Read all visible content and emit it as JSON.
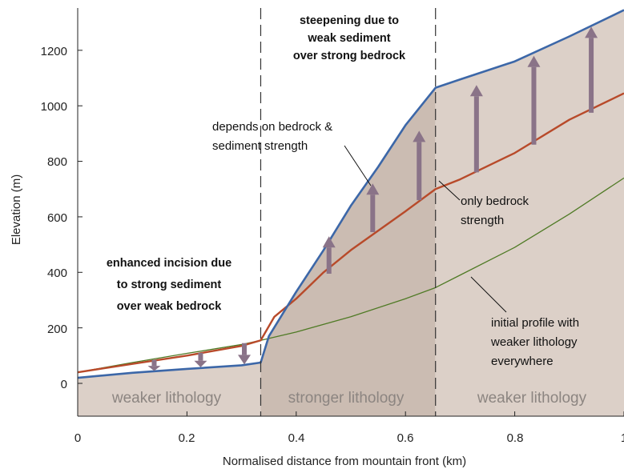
{
  "chart_data": {
    "type": "line",
    "xlabel": "Normalised distance from mountain front (km)",
    "ylabel": "Elevation (m)",
    "xlim": [
      0,
      1
    ],
    "ylim": [
      -120,
      1350
    ],
    "x_ticks": [
      "0",
      "0.2",
      "0.4",
      "0.6",
      "0.8",
      "1"
    ],
    "y_ticks": [
      "0",
      "200",
      "400",
      "600",
      "800",
      "1000",
      "1200"
    ],
    "boundaries": [
      0.335,
      0.655
    ],
    "region_labels": [
      "weaker lithology",
      "stronger lithology",
      "weaker lithology"
    ],
    "series": [
      {
        "key": "initial",
        "color": "#4f7a25",
        "x": [
          0,
          0.1,
          0.2,
          0.3,
          0.335,
          0.4,
          0.5,
          0.6,
          0.655,
          0.7,
          0.8,
          0.9,
          1.0
        ],
        "values": [
          40,
          75,
          108,
          140,
          155,
          185,
          240,
          305,
          345,
          390,
          490,
          610,
          740
        ]
      },
      {
        "key": "bedrock_only",
        "color": "#b84a2a",
        "x": [
          0,
          0.1,
          0.2,
          0.3,
          0.335,
          0.36,
          0.4,
          0.45,
          0.5,
          0.55,
          0.6,
          0.655,
          0.7,
          0.8,
          0.9,
          1.0
        ],
        "values": [
          40,
          70,
          100,
          135,
          155,
          240,
          305,
          400,
          480,
          550,
          620,
          700,
          735,
          830,
          950,
          1045
        ]
      },
      {
        "key": "with_sediment",
        "color": "#3c67a8",
        "x": [
          0,
          0.1,
          0.2,
          0.3,
          0.335,
          0.35,
          0.4,
          0.45,
          0.5,
          0.55,
          0.6,
          0.655,
          0.7,
          0.8,
          0.9,
          1.0
        ],
        "values": [
          20,
          38,
          52,
          65,
          75,
          170,
          330,
          480,
          640,
          780,
          930,
          1065,
          1095,
          1160,
          1250,
          1345
        ]
      }
    ],
    "arrows": [
      {
        "x": 0.14,
        "from": 85,
        "to": 45
      },
      {
        "x": 0.225,
        "from": 110,
        "to": 58
      },
      {
        "x": 0.305,
        "from": 145,
        "to": 68
      },
      {
        "x": 0.46,
        "from": 395,
        "to": 530
      },
      {
        "x": 0.54,
        "from": 545,
        "to": 720
      },
      {
        "x": 0.625,
        "from": 660,
        "to": 910
      },
      {
        "x": 0.73,
        "from": 760,
        "to": 1075
      },
      {
        "x": 0.835,
        "from": 860,
        "to": 1180
      },
      {
        "x": 0.94,
        "from": 975,
        "to": 1285
      }
    ],
    "annotations": {
      "top": [
        "steepening due to",
        "weak sediment",
        "over strong bedrock"
      ],
      "depends": [
        "depends on bedrock &",
        "sediment strength"
      ],
      "only": [
        "only bedrock",
        "strength"
      ],
      "enhanced": [
        "enhanced incision due",
        "to strong sediment",
        "over weak bedrock"
      ],
      "initial": [
        "initial profile with",
        "weaker lithology",
        "everywhere"
      ]
    },
    "colors": {
      "fill_weak": "#dcd0c8",
      "fill_strong": "#cbbcb2",
      "arrow": "#8a7388",
      "region_text": "#8c8581",
      "dashed": "#333333"
    }
  }
}
